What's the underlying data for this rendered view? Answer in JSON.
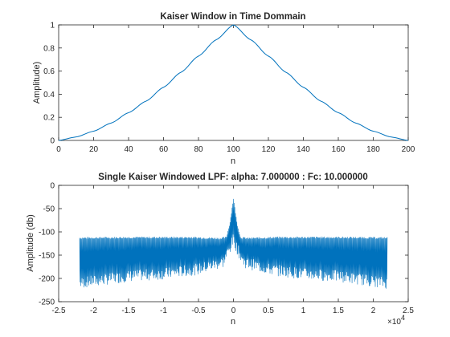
{
  "chart_data": [
    {
      "type": "line",
      "title": "Kaiser Window in Time Dommain",
      "xlabel": "n",
      "ylabel": "Amplitude)",
      "xlim": [
        0,
        200
      ],
      "ylim": [
        0,
        1
      ],
      "x_ticks": [
        "0",
        "20",
        "40",
        "60",
        "80",
        "100",
        "120",
        "140",
        "160",
        "180",
        "200"
      ],
      "y_ticks": [
        "0",
        "0.2",
        "0.4",
        "0.6",
        "0.8",
        "1"
      ],
      "grid": false,
      "color": "#0072BD",
      "series": [
        {
          "x": [
            0,
            10,
            20,
            30,
            40,
            50,
            60,
            70,
            80,
            90,
            100,
            110,
            120,
            130,
            140,
            150,
            160,
            170,
            180,
            190,
            200
          ],
          "y": [
            0.0,
            0.03,
            0.08,
            0.15,
            0.24,
            0.34,
            0.46,
            0.59,
            0.73,
            0.87,
            1.0,
            0.87,
            0.73,
            0.59,
            0.46,
            0.34,
            0.24,
            0.15,
            0.08,
            0.03,
            0.0
          ]
        }
      ]
    },
    {
      "type": "line",
      "title": "Single Kaiser Windowed LPF: alpha: 7.000000 : Fc: 10.000000",
      "xlabel": "n",
      "ylabel": "Amplitude (db)",
      "x_exponent": "×10",
      "x_exponent_power": "4",
      "xlim": [
        -2.5,
        2.5
      ],
      "ylim": [
        -250,
        0
      ],
      "x_ticks": [
        "-2.5",
        "-2",
        "-1.5",
        "-1",
        "-0.5",
        "0",
        "0.5",
        "1",
        "1.5",
        "2",
        "2.5"
      ],
      "y_ticks": [
        "0",
        "-50",
        "-100",
        "-150",
        "-200",
        "-250"
      ],
      "grid": false,
      "color": "#0072BD",
      "span": [
        -2.2,
        2.2
      ],
      "upper_envelope": [
        {
          "x": -2.2,
          "y": -113
        },
        {
          "x": -1.5,
          "y": -112
        },
        {
          "x": -0.6,
          "y": -112
        },
        {
          "x": -0.2,
          "y": -114
        },
        {
          "x": -0.1,
          "y": -112
        },
        {
          "x": -0.05,
          "y": -80
        },
        {
          "x": 0.0,
          "y": -28
        },
        {
          "x": 0.05,
          "y": -80
        },
        {
          "x": 0.1,
          "y": -112
        },
        {
          "x": 0.2,
          "y": -114
        },
        {
          "x": 0.6,
          "y": -112
        },
        {
          "x": 1.5,
          "y": -112
        },
        {
          "x": 2.2,
          "y": -113
        }
      ],
      "lower_envelope": [
        {
          "x": -2.2,
          "y": -215
        },
        {
          "x": -1.5,
          "y": -200
        },
        {
          "x": -1.0,
          "y": -195
        },
        {
          "x": -0.5,
          "y": -185
        },
        {
          "x": -0.15,
          "y": -170
        },
        {
          "x": -0.05,
          "y": -140
        },
        {
          "x": 0.0,
          "y": -120
        },
        {
          "x": 0.05,
          "y": -140
        },
        {
          "x": 0.15,
          "y": -170
        },
        {
          "x": 0.5,
          "y": -185
        },
        {
          "x": 1.0,
          "y": -195
        },
        {
          "x": 1.5,
          "y": -200
        },
        {
          "x": 2.2,
          "y": -215
        }
      ]
    }
  ]
}
